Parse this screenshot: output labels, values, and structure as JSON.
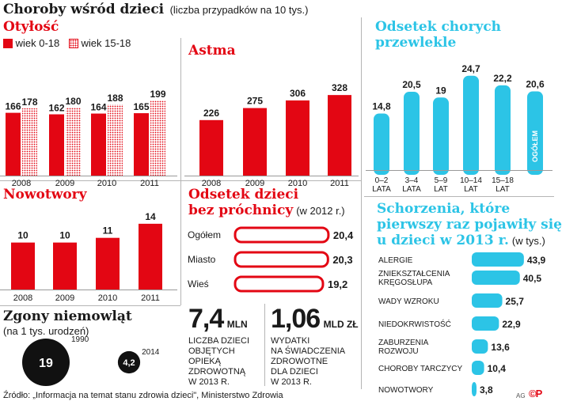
{
  "header": {
    "title": "Choroby wśród dzieci",
    "subtitle": "(liczba przypadków na 10 tys.)"
  },
  "colors": {
    "red": "#e30613",
    "cyan": "#2cc4e6",
    "dark": "#1a1a1a"
  },
  "obesity": {
    "title": "Otyłość",
    "legend": [
      "wiek 0-18",
      "wiek 15-18"
    ]
  },
  "asthma": {
    "title": "Astma"
  },
  "cancer": {
    "title": "Nowotwory"
  },
  "chronic": {
    "title_line1": "Odsetek chorych",
    "title_line2": "przewlekle"
  },
  "caries": {
    "title_line1": "Odsetek dzieci",
    "title_line2": "bez próchnicy",
    "note": "(w 2012 r.)"
  },
  "stats": {
    "left_value": "7,4",
    "left_unit": "MLN",
    "left_desc": [
      "LICZBA DZIECI",
      "OBJĘTYCH",
      "OPIEKĄ",
      "ZDROWOTNĄ",
      "W 2013 R."
    ],
    "right_value": "1,06",
    "right_unit": "MLD ZŁ",
    "right_desc": [
      "WYDATKI",
      "NA ŚWIADCZENIA",
      "ZDROWOTNE",
      "DLA DZIECI",
      "W 2013 R."
    ]
  },
  "infant": {
    "title": "Zgony niemowląt",
    "note": "(na 1 tys. urodzeń)"
  },
  "cases": {
    "title_line1": "Schorzenia, które",
    "title_line2": "pierwszy raz pojawiły się",
    "title_line3": "u dzieci w 2013 r.",
    "note": "(w tys.)"
  },
  "footer": {
    "source": "Źródło: „Informacja na temat stanu zdrowia dzieci\", Ministerstwo Zdrowia",
    "credit": "AG",
    "logo_text": "©P"
  },
  "chart_data": [
    {
      "id": "obesity",
      "type": "bar",
      "title": "Otyłość",
      "categories": [
        "2008",
        "2009",
        "2010",
        "2011"
      ],
      "series": [
        {
          "name": "wiek 0-18",
          "values": [
            166,
            162,
            164,
            165
          ]
        },
        {
          "name": "wiek 15-18",
          "values": [
            178,
            180,
            188,
            199
          ]
        }
      ]
    },
    {
      "id": "asthma",
      "type": "bar",
      "title": "Astma",
      "categories": [
        "2008",
        "2009",
        "2010",
        "2011"
      ],
      "values": [
        226,
        275,
        306,
        328
      ]
    },
    {
      "id": "cancer",
      "type": "bar",
      "title": "Nowotwory",
      "categories": [
        "2008",
        "2009",
        "2010",
        "2011"
      ],
      "values": [
        10,
        10,
        11,
        14
      ]
    },
    {
      "id": "chronic",
      "type": "bar",
      "title": "Odsetek chorych przewlekle",
      "categories": [
        [
          "0–2",
          "LATA"
        ],
        [
          "3–4",
          "LATA"
        ],
        [
          "5–9",
          "LAT"
        ],
        [
          "10–14",
          "LAT"
        ],
        [
          "15–18",
          "LAT"
        ],
        [
          "OGÓŁEM"
        ]
      ],
      "values": [
        14.8,
        20.5,
        19,
        24.7,
        22.2,
        20.6
      ],
      "value_labels": [
        "14,8",
        "20,5",
        "19",
        "24,7",
        "22,2",
        "20,6"
      ]
    },
    {
      "id": "caries",
      "type": "bar",
      "title": "Odsetek dzieci bez próchnicy (w 2012 r.)",
      "categories": [
        "Ogółem",
        "Miasto",
        "Wieś"
      ],
      "values": [
        20.4,
        20.3,
        19.2
      ],
      "value_labels": [
        "20,4",
        "20,3",
        "19,2"
      ]
    },
    {
      "id": "infant",
      "type": "bubble",
      "title": "Zgony niemowląt (na 1 tys. urodzeń)",
      "categories": [
        "1990",
        "2014"
      ],
      "values": [
        19,
        4.2
      ],
      "value_labels": [
        "19",
        "4,2"
      ]
    },
    {
      "id": "cases",
      "type": "bar",
      "title": "Schorzenia, które pierwszy raz pojawiły się u dzieci w 2013 r. (w tys.)",
      "categories": [
        [
          "ALERGIE"
        ],
        [
          "ZNIEKSZTAŁCENIA",
          "KRĘGOSŁUPA"
        ],
        [
          "WADY WZROKU"
        ],
        [
          "NIEDOKRWISTOŚĆ"
        ],
        [
          "ZABURZENIA",
          "ROZWOJU"
        ],
        [
          "CHOROBY TARCZYCY"
        ],
        [
          "NOWOTWORY"
        ]
      ],
      "values": [
        43.9,
        40.5,
        25.7,
        22.9,
        13.6,
        10.4,
        3.8
      ],
      "value_labels": [
        "43,9",
        "40,5",
        "25,7",
        "22,9",
        "13,6",
        "10,4",
        "3,8"
      ]
    }
  ]
}
